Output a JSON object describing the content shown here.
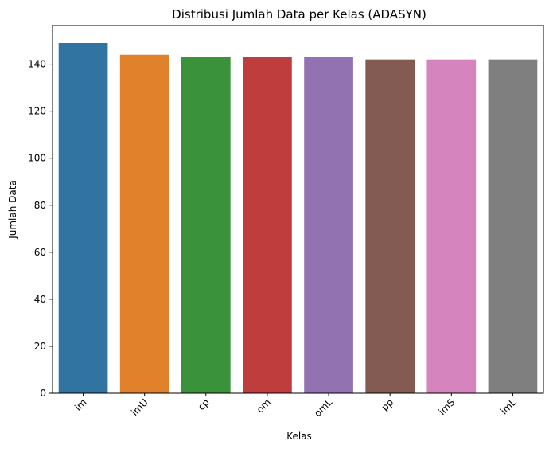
{
  "chart_data": {
    "type": "bar",
    "title": "Distribusi Jumlah Data per Kelas (ADASYN)",
    "xlabel": "Kelas",
    "ylabel": "Jumlah Data",
    "categories": [
      "im",
      "imU",
      "cp",
      "om",
      "omL",
      "pp",
      "imS",
      "imL"
    ],
    "values": [
      149,
      144,
      143,
      143,
      143,
      142,
      142,
      142
    ],
    "colors": [
      "#3274a1",
      "#e1812c",
      "#3a923a",
      "#c03d3e",
      "#9372b2",
      "#845b53",
      "#d684bd",
      "#7f7f7f"
    ],
    "yticks": [
      0,
      20,
      40,
      60,
      80,
      100,
      120,
      140
    ],
    "ylim": [
      0,
      156.45
    ],
    "grid": false,
    "xtick_rotation": 45
  }
}
